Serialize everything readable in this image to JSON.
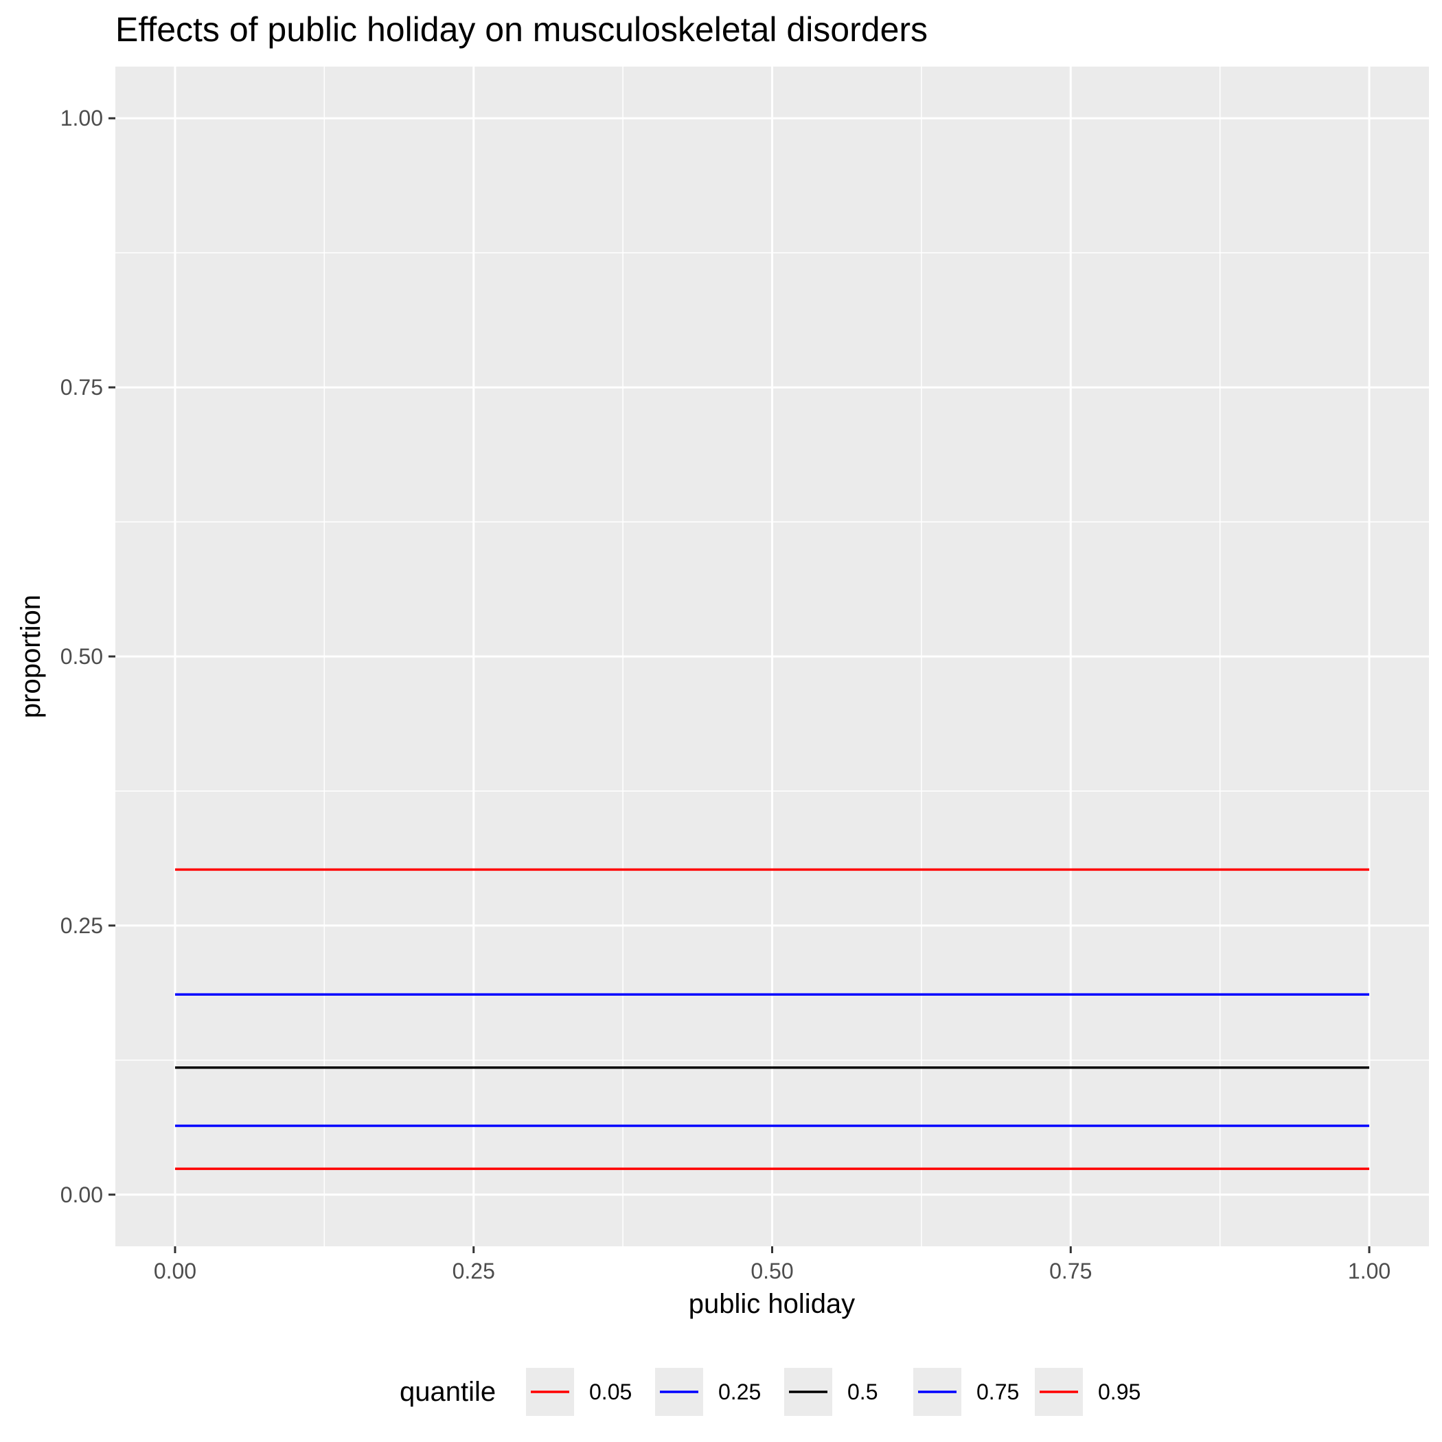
{
  "chart_data": {
    "type": "line",
    "title": "Effects of public holiday on musculoskeletal disorders",
    "xlabel": "public holiday",
    "ylabel": "proportion",
    "xlim": [
      -0.05,
      1.05
    ],
    "ylim": [
      -0.048,
      1.048
    ],
    "x_ticks": [
      0,
      0.25,
      0.5,
      0.75,
      1
    ],
    "x_tick_labels": [
      "0.00",
      "0.25",
      "0.50",
      "0.75",
      "1.00"
    ],
    "y_ticks": [
      0,
      0.25,
      0.5,
      0.75,
      1
    ],
    "y_tick_labels": [
      "0.00",
      "0.25",
      "0.50",
      "0.75",
      "1.00"
    ],
    "grid": true,
    "legend": {
      "title": "quantile",
      "position": "bottom"
    },
    "background": "#ebebeb",
    "series": [
      {
        "name": "0.05",
        "color": "#ff0000",
        "x": [
          0,
          1
        ],
        "y": [
          0.024,
          0.024
        ]
      },
      {
        "name": "0.25",
        "color": "#0000ff",
        "x": [
          0,
          1
        ],
        "y": [
          0.064,
          0.064
        ]
      },
      {
        "name": "0.5",
        "color": "#000000",
        "x": [
          0,
          1
        ],
        "y": [
          0.118,
          0.118
        ]
      },
      {
        "name": "0.75",
        "color": "#0000ff",
        "x": [
          0,
          1
        ],
        "y": [
          0.186,
          0.186
        ]
      },
      {
        "name": "0.95",
        "color": "#ff0000",
        "x": [
          0,
          1
        ],
        "y": [
          0.302,
          0.302
        ]
      }
    ]
  }
}
